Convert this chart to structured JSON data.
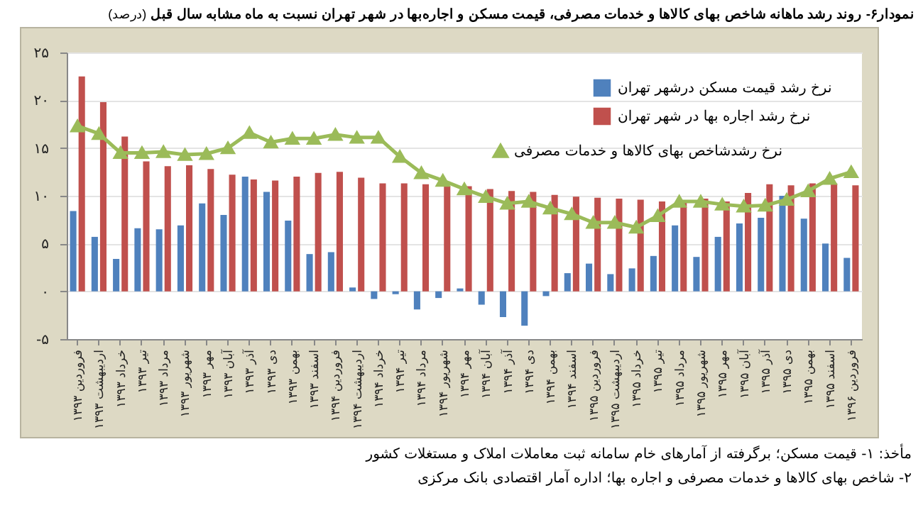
{
  "chart_data": {
    "type": "bar",
    "title": "نمودار۶- روند رشد ماهانه شاخص بهای کالاها و خدمات مصرفی، قیمت مسکن و اجاره‌بها در شهر تهران نسبت به ماه مشابه سال قبل",
    "subtitle": "(درصد)",
    "categories": [
      "فروردین ۱۳۹۳",
      "اردیبهشت ۱۳۹۳",
      "خرداد ۱۳۹۳",
      "تیر ۱۳۹۳",
      "مرداد ۱۳۹۳",
      "شهریور ۱۳۹۳",
      "مهر ۱۳۹۳",
      "آبان ۱۳۹۳",
      "آذر ۱۳۹۳",
      "دی ۱۳۹۳",
      "بهمن ۱۳۹۳",
      "اسفند ۱۳۹۳",
      "فروردین ۱۳۹۴",
      "اردیبهشت ۱۳۹۴",
      "خرداد ۱۳۹۴",
      "تیر ۱۳۹۴",
      "مرداد ۱۳۹۴",
      "شهریور ۱۳۹۴",
      "مهر ۱۳۹۴",
      "آبان ۱۳۹۴",
      "آذر ۱۳۹۴",
      "دی ۱۳۹۴",
      "بهمن ۱۳۹۴",
      "اسفند ۱۳۹۴",
      "فروردین ۱۳۹۵",
      "اردیبهشت ۱۳۹۵",
      "خرداد ۱۳۹۵",
      "تیر ۱۳۹۵",
      "مرداد ۱۳۹۵",
      "شهریور ۱۳۹۵",
      "مهر ۱۳۹۵",
      "آبان ۱۳۹۵",
      "آذر ۱۳۹۵",
      "دی ۱۳۹۵",
      "بهمن ۱۳۹۵",
      "اسفند ۱۳۹۵",
      "فروردین ۱۳۹۶"
    ],
    "series": [
      {
        "name": "نرخ رشد قیمت مسکن  درشهر تهران",
        "type": "bar",
        "color": "#4f81bd",
        "values": [
          8.4,
          5.7,
          3.4,
          6.6,
          6.5,
          6.9,
          9.2,
          8.0,
          12.0,
          10.4,
          7.4,
          3.9,
          4.1,
          0.4,
          -0.8,
          -0.3,
          -1.9,
          -0.7,
          0.3,
          -1.4,
          -2.7,
          -3.6,
          -0.5,
          1.9,
          2.9,
          1.8,
          2.4,
          3.7,
          6.9,
          3.6,
          5.7,
          7.1,
          7.7,
          10.0,
          7.6,
          5.0,
          3.5
        ]
      },
      {
        "name": "نرخ رشد اجاره بها در شهر تهران",
        "type": "bar",
        "color": "#c0504d",
        "values": [
          22.5,
          19.8,
          16.2,
          13.6,
          13.1,
          13.2,
          12.8,
          12.2,
          11.7,
          11.6,
          12.0,
          12.4,
          12.5,
          11.9,
          11.3,
          11.3,
          11.2,
          11.0,
          11.0,
          10.7,
          10.5,
          10.4,
          10.1,
          9.9,
          9.8,
          9.7,
          9.6,
          9.4,
          9.5,
          9.7,
          9.4,
          10.3,
          11.2,
          11.1,
          11.3,
          11.3,
          11.1
        ]
      },
      {
        "name": "نرخ رشدشاخص بهای کالاها و خدمات مصرفی",
        "type": "line",
        "color": "#9bbb59",
        "values": [
          17.3,
          16.5,
          14.5,
          14.5,
          14.6,
          14.3,
          14.4,
          15.0,
          16.6,
          15.6,
          16.0,
          16.0,
          16.4,
          16.1,
          16.1,
          14.1,
          12.4,
          11.6,
          10.7,
          9.9,
          9.2,
          9.4,
          8.7,
          8.1,
          7.2,
          7.2,
          6.7,
          7.9,
          9.4,
          9.4,
          9.1,
          8.9,
          9.0,
          9.6,
          10.5,
          11.8,
          12.5
        ]
      }
    ],
    "ylim": [
      -5,
      25
    ],
    "yticks": [
      {
        "value": -5,
        "label": "-۵"
      },
      {
        "value": 0,
        "label": "۰"
      },
      {
        "value": 5,
        "label": "۵"
      },
      {
        "value": 10,
        "label": "۱۰"
      },
      {
        "value": 15,
        "label": "۱۵"
      },
      {
        "value": 20,
        "label": "۲۰"
      },
      {
        "value": 25,
        "label": "۲۵"
      }
    ],
    "grid": "y",
    "legend": "top right",
    "marker": "triangle",
    "annotations": [
      "مأخذ: ۱- قیمت مسکن؛ برگرفته از آمارهای خام سامانه ثبت معاملات املاک و مستغلات کشور",
      "۲- شاخص بهای کالاها و خدمات مصرفی و اجاره بها؛ اداره آمار اقتصادی بانک مرکزی"
    ]
  }
}
